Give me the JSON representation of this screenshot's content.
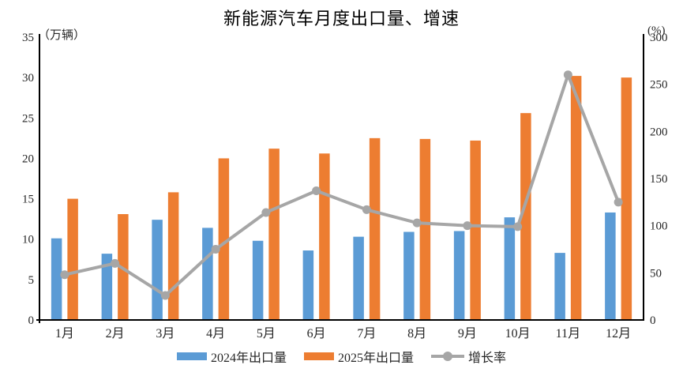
{
  "chart": {
    "title": "新能源汽车月度出口量、增速",
    "left_axis_unit": "（万辆）",
    "right_axis_unit": "(%)"
  },
  "chart_data": {
    "type": "bar+line combo",
    "title": "新能源汽车月度出口量、增速",
    "categories": [
      "1月",
      "2月",
      "3月",
      "4月",
      "5月",
      "6月",
      "7月",
      "8月",
      "9月",
      "10月",
      "11月",
      "12月"
    ],
    "series": [
      {
        "name": "2024年出口量",
        "type": "bar",
        "axis": "left",
        "color": "#5B9BD5",
        "values": [
          10.1,
          8.2,
          12.4,
          11.4,
          9.8,
          8.6,
          10.3,
          10.9,
          11.0,
          12.7,
          8.3,
          13.3
        ]
      },
      {
        "name": "2025年出口量",
        "type": "bar",
        "axis": "left",
        "color": "#ED7D31",
        "values": [
          15.0,
          13.1,
          15.8,
          20.0,
          21.2,
          20.6,
          22.5,
          22.4,
          22.2,
          25.6,
          30.2,
          30.0
        ]
      },
      {
        "name": "增长率",
        "type": "line",
        "axis": "right",
        "color": "#A6A6A6",
        "values": [
          48,
          60,
          26,
          75,
          114,
          137,
          117,
          103,
          100,
          99,
          260,
          125
        ]
      }
    ],
    "left_axis": {
      "label": "（万辆）",
      "min": 0,
      "max": 35,
      "ticks": [
        0,
        5,
        10,
        15,
        20,
        25,
        30,
        35
      ]
    },
    "right_axis": {
      "label": "(%)",
      "min": 0,
      "max": 300,
      "ticks": [
        0,
        50,
        100,
        150,
        200,
        250,
        300
      ]
    },
    "legend_position": "bottom",
    "grid": false,
    "axis_color": "#000000",
    "tick_label_color": "#262626"
  }
}
